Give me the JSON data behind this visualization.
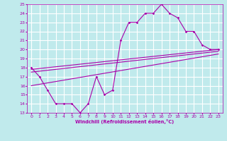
{
  "xlabel": "Windchill (Refroidissement éolien,°C)",
  "xlim": [
    -0.5,
    23.5
  ],
  "ylim": [
    13,
    25
  ],
  "xticks": [
    0,
    1,
    2,
    3,
    4,
    5,
    6,
    7,
    8,
    9,
    10,
    11,
    12,
    13,
    14,
    15,
    16,
    17,
    18,
    19,
    20,
    21,
    22,
    23
  ],
  "yticks": [
    13,
    14,
    15,
    16,
    17,
    18,
    19,
    20,
    21,
    22,
    23,
    24,
    25
  ],
  "bg_color": "#c0eaec",
  "line_color": "#aa00aa",
  "grid_color": "#ffffff",
  "line1_x": [
    0,
    1,
    2,
    3,
    4,
    5,
    6,
    7,
    8,
    9,
    10,
    11,
    12,
    13,
    14,
    15,
    16,
    17,
    18,
    19,
    20,
    21,
    22,
    23
  ],
  "line1_y": [
    18,
    17,
    15.5,
    14,
    14,
    14,
    13,
    14,
    17,
    15,
    15.5,
    21,
    23,
    23,
    24,
    24,
    25,
    24,
    23.5,
    22,
    22,
    20.5,
    20,
    20
  ],
  "line2_x": [
    0,
    23
  ],
  "line2_y": [
    17.8,
    20.0
  ],
  "line3_x": [
    0,
    23
  ],
  "line3_y": [
    16.0,
    19.5
  ],
  "line4_x": [
    0,
    23
  ],
  "line4_y": [
    17.5,
    19.8
  ]
}
